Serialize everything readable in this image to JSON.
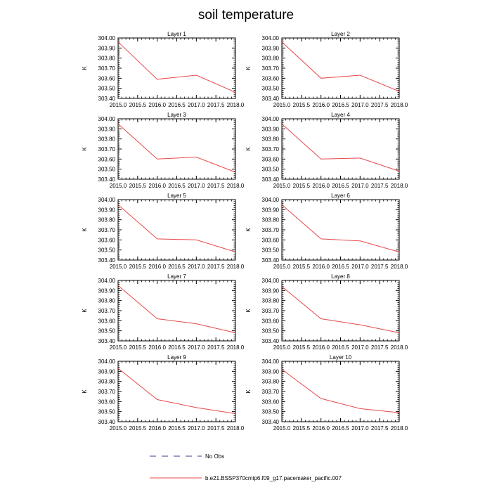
{
  "figure": {
    "title": "soil temperature",
    "legend": [
      {
        "label": "No Obs",
        "style": "dashed",
        "color": "#3a3a8c"
      },
      {
        "label": "b.e21.BSSP370cmip6.f09_g17.pacemaker_pacific.007",
        "style": "solid",
        "color": "#e8494a"
      }
    ]
  },
  "chart_data": [
    {
      "type": "line",
      "title": "Layer 1",
      "xlabel": "",
      "ylabel": "K",
      "xlim": [
        2015.0,
        2018.0
      ],
      "ylim": [
        303.4,
        304.0
      ],
      "xticks": [
        "2015.0",
        "2015.5",
        "2016.0",
        "2016.5",
        "2017.0",
        "2017.5",
        "2018.0"
      ],
      "yticks": [
        "303.40",
        "303.50",
        "303.60",
        "303.70",
        "303.80",
        "303.90",
        "304.00"
      ],
      "series": [
        {
          "x": [
            2015.0,
            2016.0,
            2017.0,
            2018.0
          ],
          "values": [
            303.96,
            303.59,
            303.63,
            303.46
          ]
        }
      ]
    },
    {
      "type": "line",
      "title": "Layer 2",
      "xlabel": "",
      "ylabel": "K",
      "xlim": [
        2015.0,
        2018.0
      ],
      "ylim": [
        303.4,
        304.0
      ],
      "xticks": [
        "2015.0",
        "2015.5",
        "2016.0",
        "2016.5",
        "2017.0",
        "2017.5",
        "2018.0"
      ],
      "yticks": [
        "303.40",
        "303.50",
        "303.60",
        "303.70",
        "303.80",
        "303.90",
        "304.00"
      ],
      "series": [
        {
          "x": [
            2015.0,
            2016.0,
            2017.0,
            2018.0
          ],
          "values": [
            303.96,
            303.6,
            303.63,
            303.47
          ]
        }
      ]
    },
    {
      "type": "line",
      "title": "Layer 3",
      "xlabel": "",
      "ylabel": "K",
      "xlim": [
        2015.0,
        2018.0
      ],
      "ylim": [
        303.4,
        304.0
      ],
      "xticks": [
        "2015.0",
        "2015.5",
        "2016.0",
        "2016.5",
        "2017.0",
        "2017.5",
        "2018.0"
      ],
      "yticks": [
        "303.40",
        "303.50",
        "303.60",
        "303.70",
        "303.80",
        "303.90",
        "304.00"
      ],
      "series": [
        {
          "x": [
            2015.0,
            2016.0,
            2017.0,
            2018.0
          ],
          "values": [
            303.95,
            303.6,
            303.62,
            303.47
          ]
        }
      ]
    },
    {
      "type": "line",
      "title": "Layer 4",
      "xlabel": "",
      "ylabel": "K",
      "xlim": [
        2015.0,
        2018.0
      ],
      "ylim": [
        303.4,
        304.0
      ],
      "xticks": [
        "2015.0",
        "2015.5",
        "2016.0",
        "2016.5",
        "2017.0",
        "2017.5",
        "2018.0"
      ],
      "yticks": [
        "303.40",
        "303.50",
        "303.60",
        "303.70",
        "303.80",
        "303.90",
        "304.00"
      ],
      "series": [
        {
          "x": [
            2015.0,
            2016.0,
            2017.0,
            2018.0
          ],
          "values": [
            303.95,
            303.6,
            303.61,
            303.48
          ]
        }
      ]
    },
    {
      "type": "line",
      "title": "Layer 5",
      "xlabel": "",
      "ylabel": "K",
      "xlim": [
        2015.0,
        2018.0
      ],
      "ylim": [
        303.4,
        304.0
      ],
      "xticks": [
        "2015.0",
        "2015.5",
        "2016.0",
        "2016.5",
        "2017.0",
        "2017.5",
        "2018.0"
      ],
      "yticks": [
        "303.40",
        "303.50",
        "303.60",
        "303.70",
        "303.80",
        "303.90",
        "304.00"
      ],
      "series": [
        {
          "x": [
            2015.0,
            2016.0,
            2017.0,
            2018.0
          ],
          "values": [
            303.95,
            303.61,
            303.6,
            303.48
          ]
        }
      ]
    },
    {
      "type": "line",
      "title": "Layer 6",
      "xlabel": "",
      "ylabel": "K",
      "xlim": [
        2015.0,
        2018.0
      ],
      "ylim": [
        303.4,
        304.0
      ],
      "xticks": [
        "2015.0",
        "2015.5",
        "2016.0",
        "2016.5",
        "2017.0",
        "2017.5",
        "2018.0"
      ],
      "yticks": [
        "303.40",
        "303.50",
        "303.60",
        "303.70",
        "303.80",
        "303.90",
        "304.00"
      ],
      "series": [
        {
          "x": [
            2015.0,
            2016.0,
            2017.0,
            2018.0
          ],
          "values": [
            303.95,
            303.61,
            303.59,
            303.48
          ]
        }
      ]
    },
    {
      "type": "line",
      "title": "Layer 7",
      "xlabel": "",
      "ylabel": "K",
      "xlim": [
        2015.0,
        2018.0
      ],
      "ylim": [
        303.4,
        304.0
      ],
      "xticks": [
        "2015.0",
        "2015.5",
        "2016.0",
        "2016.5",
        "2017.0",
        "2017.5",
        "2018.0"
      ],
      "yticks": [
        "303.40",
        "303.50",
        "303.60",
        "303.70",
        "303.80",
        "303.90",
        "304.00"
      ],
      "series": [
        {
          "x": [
            2015.0,
            2016.0,
            2017.0,
            2018.0
          ],
          "values": [
            303.95,
            303.62,
            303.57,
            303.48
          ]
        }
      ]
    },
    {
      "type": "line",
      "title": "Layer 8",
      "xlabel": "",
      "ylabel": "K",
      "xlim": [
        2015.0,
        2018.0
      ],
      "ylim": [
        303.4,
        304.0
      ],
      "xticks": [
        "2015.0",
        "2015.5",
        "2016.0",
        "2016.5",
        "2017.0",
        "2017.5",
        "2018.0"
      ],
      "yticks": [
        "303.40",
        "303.50",
        "303.60",
        "303.70",
        "303.80",
        "303.90",
        "304.00"
      ],
      "series": [
        {
          "x": [
            2015.0,
            2016.0,
            2017.0,
            2018.0
          ],
          "values": [
            303.94,
            303.62,
            303.56,
            303.48
          ]
        }
      ]
    },
    {
      "type": "line",
      "title": "Layer 9",
      "xlabel": "",
      "ylabel": "K",
      "xlim": [
        2015.0,
        2018.0
      ],
      "ylim": [
        303.4,
        304.0
      ],
      "xticks": [
        "2015.0",
        "2015.5",
        "2016.0",
        "2016.5",
        "2017.0",
        "2017.5",
        "2018.0"
      ],
      "yticks": [
        "303.40",
        "303.50",
        "303.60",
        "303.70",
        "303.80",
        "303.90",
        "304.00"
      ],
      "series": [
        {
          "x": [
            2015.0,
            2016.0,
            2017.0,
            2018.0
          ],
          "values": [
            303.93,
            303.62,
            303.54,
            303.48
          ]
        }
      ]
    },
    {
      "type": "line",
      "title": "Layer 10",
      "xlabel": "",
      "ylabel": "K",
      "xlim": [
        2015.0,
        2018.0
      ],
      "ylim": [
        303.4,
        304.0
      ],
      "xticks": [
        "2015.0",
        "2015.5",
        "2016.0",
        "2016.5",
        "2017.0",
        "2017.5",
        "2018.0"
      ],
      "yticks": [
        "303.40",
        "303.50",
        "303.60",
        "303.70",
        "303.80",
        "303.90",
        "304.00"
      ],
      "series": [
        {
          "x": [
            2015.0,
            2016.0,
            2017.0,
            2018.0
          ],
          "values": [
            303.92,
            303.63,
            303.53,
            303.49
          ]
        }
      ]
    }
  ]
}
